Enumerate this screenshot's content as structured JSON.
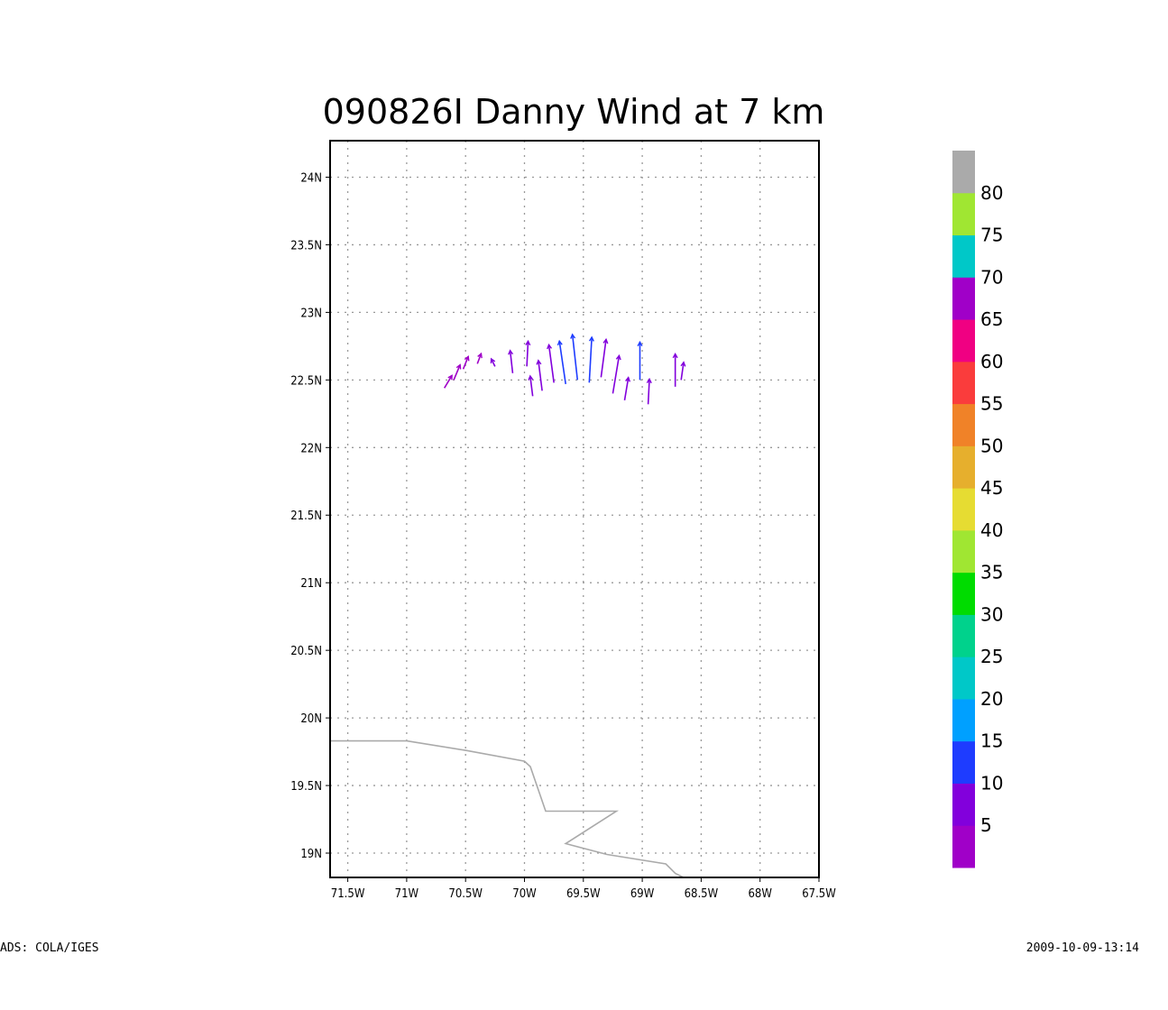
{
  "title": "090826I Danny Wind at 7 km",
  "footer_left": "ADS: COLA/IGES",
  "footer_right": "2009-10-09-13:14",
  "axes": {
    "lon_ticks": [
      "71.5W",
      "71W",
      "70.5W",
      "70W",
      "69.5W",
      "69W",
      "68.5W",
      "68W",
      "67.5W"
    ],
    "lat_ticks": [
      "24N",
      "23.5N",
      "23N",
      "22.5N",
      "22N",
      "21.5N",
      "21N",
      "20.5N",
      "20N",
      "19.5N",
      "19N"
    ],
    "lon_range": [
      -71.65,
      -67.5
    ],
    "lat_range": [
      18.82,
      24.27
    ],
    "grid": true
  },
  "colorbar": {
    "labels": [
      "5",
      "10",
      "15",
      "20",
      "25",
      "30",
      "35",
      "40",
      "45",
      "50",
      "55",
      "60",
      "65",
      "70",
      "75",
      "80"
    ],
    "colors": [
      "#a000c8",
      "#8200dc",
      "#1e3cff",
      "#00a0ff",
      "#00c8c8",
      "#00d28c",
      "#00dc00",
      "#a0e632",
      "#e6dc32",
      "#e6af2d",
      "#f08228",
      "#fa3c3c",
      "#f00082",
      "#a000c8",
      "#00c8c8",
      "#a0e632",
      "#aaaaaa"
    ]
  },
  "coastline": {
    "color": "#aaaaaa",
    "points": [
      [
        -71.65,
        19.83
      ],
      [
        -71.0,
        19.83
      ],
      [
        -70.5,
        19.76
      ],
      [
        -70.0,
        19.68
      ],
      [
        -69.95,
        19.64
      ],
      [
        -69.82,
        19.31
      ],
      [
        -69.22,
        19.31
      ],
      [
        -69.65,
        19.07
      ],
      [
        -69.3,
        18.99
      ],
      [
        -68.8,
        18.92
      ],
      [
        -68.72,
        18.85
      ],
      [
        -68.65,
        18.82
      ]
    ]
  },
  "wind_vectors": [
    {
      "lon": -70.68,
      "lat": 22.44,
      "u": 0.6,
      "v": 1.0,
      "color": "#a000c8"
    },
    {
      "lon": -70.6,
      "lat": 22.5,
      "u": 0.5,
      "v": 1.2,
      "color": "#a000c8"
    },
    {
      "lon": -70.52,
      "lat": 22.58,
      "u": 0.4,
      "v": 1.0,
      "color": "#a000c8"
    },
    {
      "lon": -70.4,
      "lat": 22.62,
      "u": 0.3,
      "v": 0.8,
      "color": "#a000c8"
    },
    {
      "lon": -70.25,
      "lat": 22.6,
      "u": -0.3,
      "v": 0.6,
      "color": "#8200dc"
    },
    {
      "lon": -70.1,
      "lat": 22.55,
      "u": -0.2,
      "v": 1.8,
      "color": "#8200dc"
    },
    {
      "lon": -69.98,
      "lat": 22.6,
      "u": 0.1,
      "v": 2.0,
      "color": "#8200dc"
    },
    {
      "lon": -69.93,
      "lat": 22.38,
      "u": -0.2,
      "v": 1.6,
      "color": "#8200dc"
    },
    {
      "lon": -69.85,
      "lat": 22.42,
      "u": -0.3,
      "v": 2.4,
      "color": "#8200dc"
    },
    {
      "lon": -69.75,
      "lat": 22.48,
      "u": -0.4,
      "v": 3.0,
      "color": "#8200dc"
    },
    {
      "lon": -69.65,
      "lat": 22.47,
      "u": -0.5,
      "v": 3.4,
      "color": "#1e3cff"
    },
    {
      "lon": -69.55,
      "lat": 22.5,
      "u": -0.4,
      "v": 3.6,
      "color": "#1e3cff"
    },
    {
      "lon": -69.45,
      "lat": 22.48,
      "u": 0.2,
      "v": 3.6,
      "color": "#1e3cff"
    },
    {
      "lon": -69.35,
      "lat": 22.52,
      "u": 0.4,
      "v": 3.0,
      "color": "#8200dc"
    },
    {
      "lon": -69.25,
      "lat": 22.4,
      "u": 0.5,
      "v": 3.0,
      "color": "#8200dc"
    },
    {
      "lon": -69.15,
      "lat": 22.35,
      "u": 0.3,
      "v": 1.8,
      "color": "#8200dc"
    },
    {
      "lon": -69.02,
      "lat": 22.5,
      "u": 0.0,
      "v": 3.0,
      "color": "#1e3cff"
    },
    {
      "lon": -68.95,
      "lat": 22.32,
      "u": 0.1,
      "v": 2.0,
      "color": "#8200dc"
    },
    {
      "lon": -68.72,
      "lat": 22.45,
      "u": 0.0,
      "v": 2.6,
      "color": "#8200dc"
    },
    {
      "lon": -68.67,
      "lat": 22.5,
      "u": 0.2,
      "v": 1.4,
      "color": "#8200dc"
    }
  ]
}
